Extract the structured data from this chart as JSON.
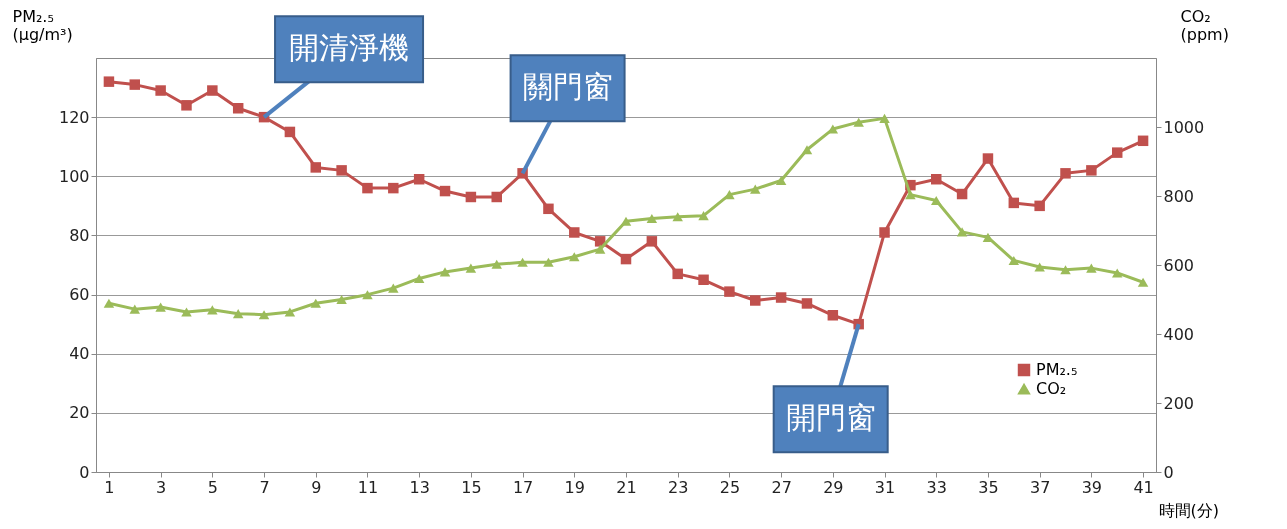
{
  "chart_data": {
    "type": "line",
    "ylabel": "PM₂.₅ (μg/m³)",
    "y2label": "CO₂ (ppm)",
    "xlabel": "時間(分)",
    "x": [
      1,
      2,
      3,
      4,
      5,
      6,
      7,
      8,
      9,
      10,
      11,
      12,
      13,
      14,
      15,
      16,
      17,
      18,
      19,
      20,
      21,
      22,
      23,
      24,
      25,
      26,
      27,
      28,
      29,
      30,
      31,
      32,
      33,
      34,
      35,
      36,
      37,
      38,
      39,
      40,
      41
    ],
    "xlim": [
      0.5,
      41.5
    ],
    "xticks": [
      1,
      3,
      5,
      7,
      9,
      11,
      13,
      15,
      17,
      19,
      21,
      23,
      25,
      27,
      29,
      31,
      33,
      35,
      37,
      39,
      41
    ],
    "ylim": [
      0,
      140
    ],
    "yticks": [
      0,
      20,
      40,
      60,
      80,
      100,
      120
    ],
    "y2lim": [
      0,
      1200
    ],
    "y2ticks": [
      0,
      200,
      400,
      600,
      800,
      1000
    ],
    "grid": "y",
    "legend": "bottom right",
    "series": [
      {
        "name": "PM₂.₅",
        "color": "#c0504d",
        "marker": "square",
        "values": [
          132,
          131,
          129,
          124,
          129,
          123,
          120,
          115,
          103,
          102,
          96,
          96,
          99,
          95,
          93,
          93,
          101,
          89,
          81,
          78,
          72,
          78,
          67,
          65,
          61,
          58,
          59,
          57,
          53,
          50,
          81,
          97,
          99,
          94,
          106,
          91,
          90,
          101,
          102,
          108,
          112
        ]
      },
      {
        "name": "CO₂",
        "color": "#9bbb59",
        "marker": "triangle",
        "axis": "y2",
        "values": [
          489,
          472,
          478,
          464,
          470,
          459,
          456,
          464,
          489,
          500,
          514,
          533,
          561,
          580,
          591,
          602,
          608,
          608,
          624,
          646,
          727,
          735,
          740,
          743,
          804,
          820,
          845,
          934,
          994,
          1014,
          1025,
          804,
          787,
          696,
          680,
          613,
          594,
          586,
          591,
          577,
          550
        ]
      }
    ],
    "annotations": [
      {
        "text": "開清淨機",
        "x": 7,
        "y": 120
      },
      {
        "text": "關門窗",
        "x": 17,
        "y": 101
      },
      {
        "text": "開門窗",
        "x": 30,
        "y": 50
      }
    ]
  }
}
